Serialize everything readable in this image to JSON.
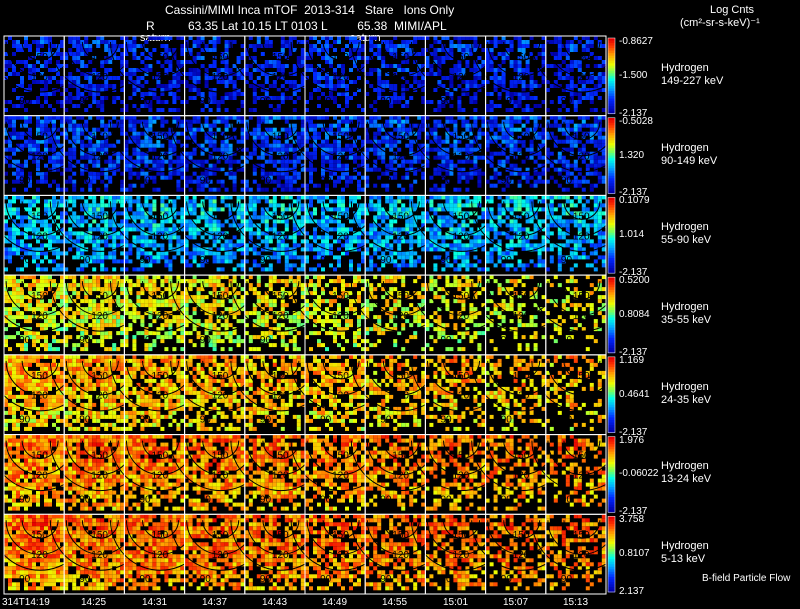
{
  "header": {
    "title_line1": "Cassini/MIMI Inca mTOF  2013-314   Stare   Ions Only",
    "title_line2": "R          63.35 Lat 10.15 LT 0103 L         65.38  MIMI/APL",
    "units_line1": "Log Cnts",
    "units_line2": "(cm²-sr-s-keV)⁻¹",
    "frame_label_a": "saturn",
    "frame_label_b": "saturn"
  },
  "footer": {
    "bfield_label": "B-field Particle Flow",
    "times": [
      "314T14:19",
      "14:25",
      "14:31",
      "14:37",
      "14:43",
      "14:49",
      "14:55",
      "15:01",
      "15:07",
      "15:13"
    ]
  },
  "chart_data": {
    "type": "heatmap",
    "title": "Cassini/MIMI Inca mTOF 2013-314 Stare Ions Only",
    "colorbar_units": "Log Cnts (cm²-sr-s-keV)⁻¹",
    "contour_labels": [
      "150",
      "120",
      "90"
    ],
    "columns": 10,
    "rows": [
      {
        "species": "Hydrogen",
        "energy": "149-227 keV",
        "cmax": "-0.8627",
        "cmid": "-1.500",
        "cmin": "-2.137",
        "base": 0.18,
        "fill": 0.55
      },
      {
        "species": "Hydrogen",
        "energy": "90-149 keV",
        "cmax": "-0.5028",
        "cmid": "1.320",
        "cmin": "-2.137",
        "base": 0.22,
        "fill": 0.65
      },
      {
        "species": "Hydrogen",
        "energy": "55-90 keV",
        "cmax": "0.1079",
        "cmid": "1.014",
        "cmin": "-2.137",
        "base": 0.4,
        "fill": 0.7
      },
      {
        "species": "Hydrogen",
        "energy": "35-55 keV",
        "cmax": "0.5200",
        "cmid": "0.8084",
        "cmin": "-2.137",
        "base": 0.72,
        "fill": 0.78
      },
      {
        "species": "Hydrogen",
        "energy": "24-35 keV",
        "cmax": "1.169",
        "cmid": "0.4641",
        "cmin": "-2.137",
        "base": 0.8,
        "fill": 0.85
      },
      {
        "species": "Hydrogen",
        "energy": "13-24 keV",
        "cmax": "1.976",
        "cmid": "-0.06022",
        "cmin": "-2.137",
        "base": 0.86,
        "fill": 0.92
      },
      {
        "species": "Hydrogen",
        "energy": "5-13 keV",
        "cmax": "3.758",
        "cmid": "0.8107",
        "cmin": "2.137",
        "base": 0.88,
        "fill": 0.95
      }
    ]
  }
}
